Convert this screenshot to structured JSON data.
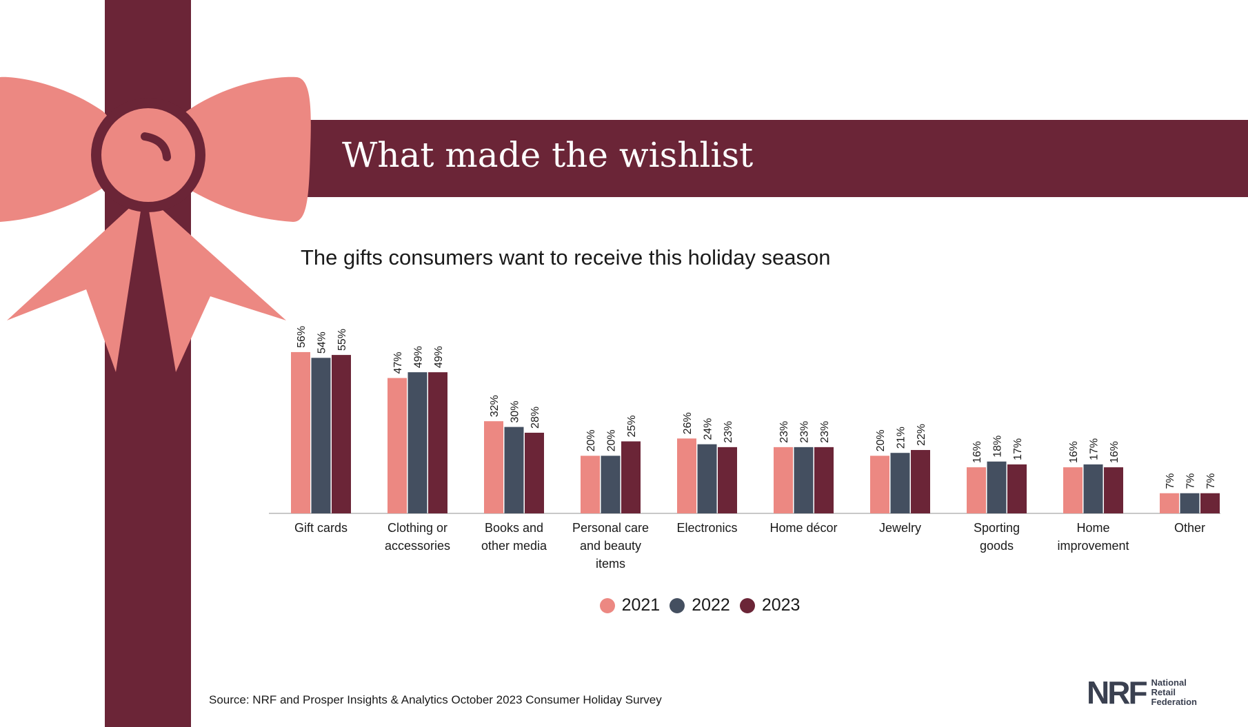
{
  "banner": {
    "title": "What made the wishlist"
  },
  "subtitle": "The gifts consumers want to receive this holiday season",
  "colors": {
    "ribbon": "#6b2537",
    "bow": "#ec8882",
    "c2021": "#ec8882",
    "c2022": "#444f60",
    "c2023": "#6b2537"
  },
  "chart_data": {
    "type": "bar",
    "title": "The gifts consumers want to receive this holiday season",
    "categories": [
      [
        "Gift cards"
      ],
      [
        "Clothing or",
        "accessories"
      ],
      [
        "Books and",
        "other media"
      ],
      [
        "Personal care",
        "and beauty",
        "items"
      ],
      [
        "Electronics"
      ],
      [
        "Home décor"
      ],
      [
        "Jewelry"
      ],
      [
        "Sporting",
        "goods"
      ],
      [
        "Home",
        "improvement"
      ],
      [
        "Other"
      ]
    ],
    "series": [
      {
        "name": "2021",
        "color": "#ec8882",
        "values": [
          56,
          47,
          32,
          20,
          26,
          23,
          20,
          16,
          16,
          7
        ]
      },
      {
        "name": "2022",
        "color": "#444f60",
        "values": [
          54,
          49,
          30,
          20,
          24,
          23,
          21,
          18,
          17,
          7
        ]
      },
      {
        "name": "2023",
        "color": "#6b2537",
        "values": [
          55,
          49,
          28,
          25,
          23,
          23,
          22,
          17,
          16,
          7
        ]
      }
    ],
    "ylim": [
      0,
      60
    ],
    "xlabel": "",
    "ylabel": "",
    "grid": false,
    "legend": "bottom",
    "value_suffix": "%"
  },
  "legend": {
    "items": [
      {
        "label": "2021",
        "color": "#ec8882"
      },
      {
        "label": "2022",
        "color": "#444f60"
      },
      {
        "label": "2023",
        "color": "#6b2537"
      }
    ]
  },
  "source": "Source: NRF and Prosper Insights & Analytics October 2023 Consumer Holiday Survey",
  "logo": {
    "mark": "NRF",
    "line1": "National",
    "line2": "Retail",
    "line3": "Federation"
  }
}
